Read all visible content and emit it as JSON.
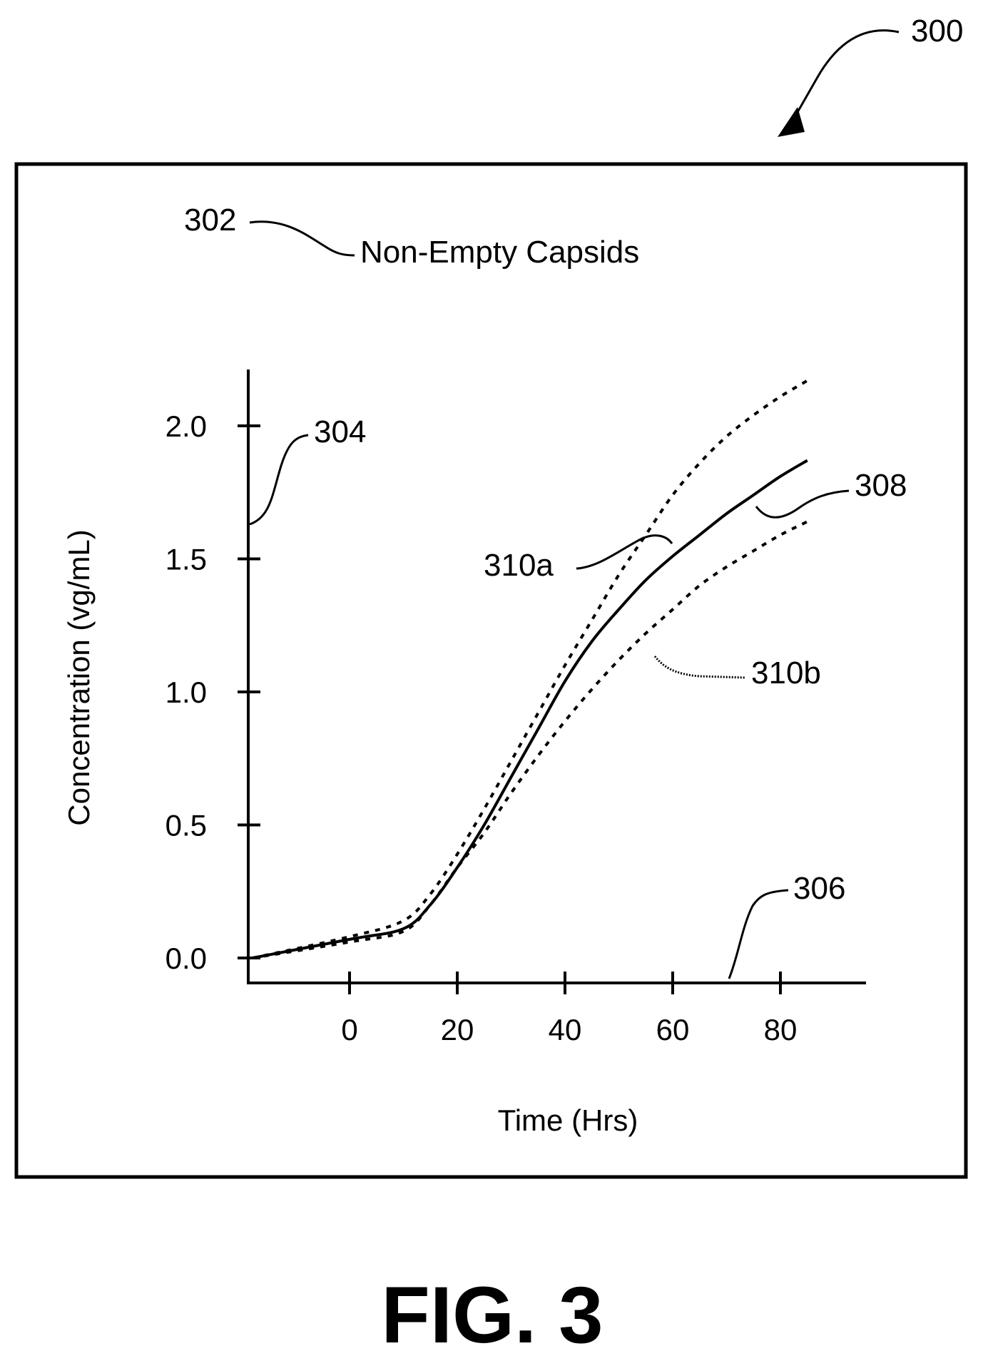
{
  "figure": {
    "number_label": "300",
    "caption": "FIG. 3"
  },
  "refs": {
    "r302": "302",
    "r304": "304",
    "r306": "306",
    "r308": "308",
    "r310a": "310a",
    "r310b": "310b"
  },
  "chart_data": {
    "type": "line",
    "title": "Non-Empty Capsids",
    "xlabel": "Time (Hrs)",
    "ylabel": "Concentration (vg/mL)",
    "xlim": [
      -18,
      93
    ],
    "ylim": [
      -0.09,
      2.2
    ],
    "x_ticks": [
      0,
      20,
      40,
      60,
      80
    ],
    "x_tick_labels": [
      "0",
      "20",
      "40",
      "60",
      "80"
    ],
    "y_ticks": [
      0.0,
      0.5,
      1.0,
      1.5,
      2.0
    ],
    "y_tick_labels": [
      "0.0",
      "0.5",
      "1.0",
      "1.5",
      "2.0"
    ],
    "grid": false,
    "series": [
      {
        "style": "solid",
        "x": [
          -18,
          0,
          10,
          15,
          20,
          25,
          30,
          35,
          40,
          45,
          50,
          55,
          60,
          65,
          70,
          75,
          80,
          85
        ],
        "y": [
          0.0,
          0.07,
          0.11,
          0.2,
          0.34,
          0.5,
          0.68,
          0.86,
          1.04,
          1.19,
          1.31,
          1.42,
          1.51,
          1.59,
          1.67,
          1.74,
          1.81,
          1.87
        ]
      },
      {
        "style": "dotted",
        "x": [
          -18,
          0,
          10,
          15,
          20,
          25,
          30,
          35,
          40,
          45,
          50,
          55,
          60,
          65,
          70,
          75,
          80,
          85
        ],
        "y": [
          0.0,
          0.08,
          0.14,
          0.24,
          0.39,
          0.56,
          0.74,
          0.92,
          1.1,
          1.27,
          1.44,
          1.59,
          1.74,
          1.86,
          1.96,
          2.04,
          2.11,
          2.17
        ]
      },
      {
        "style": "dotted",
        "x": [
          -18,
          0,
          10,
          15,
          20,
          25,
          30,
          35,
          40,
          45,
          50,
          55,
          60,
          65,
          70,
          75,
          80,
          85
        ],
        "y": [
          0.0,
          0.06,
          0.1,
          0.2,
          0.34,
          0.47,
          0.62,
          0.76,
          0.89,
          1.01,
          1.12,
          1.22,
          1.31,
          1.4,
          1.47,
          1.53,
          1.59,
          1.64
        ]
      }
    ]
  }
}
